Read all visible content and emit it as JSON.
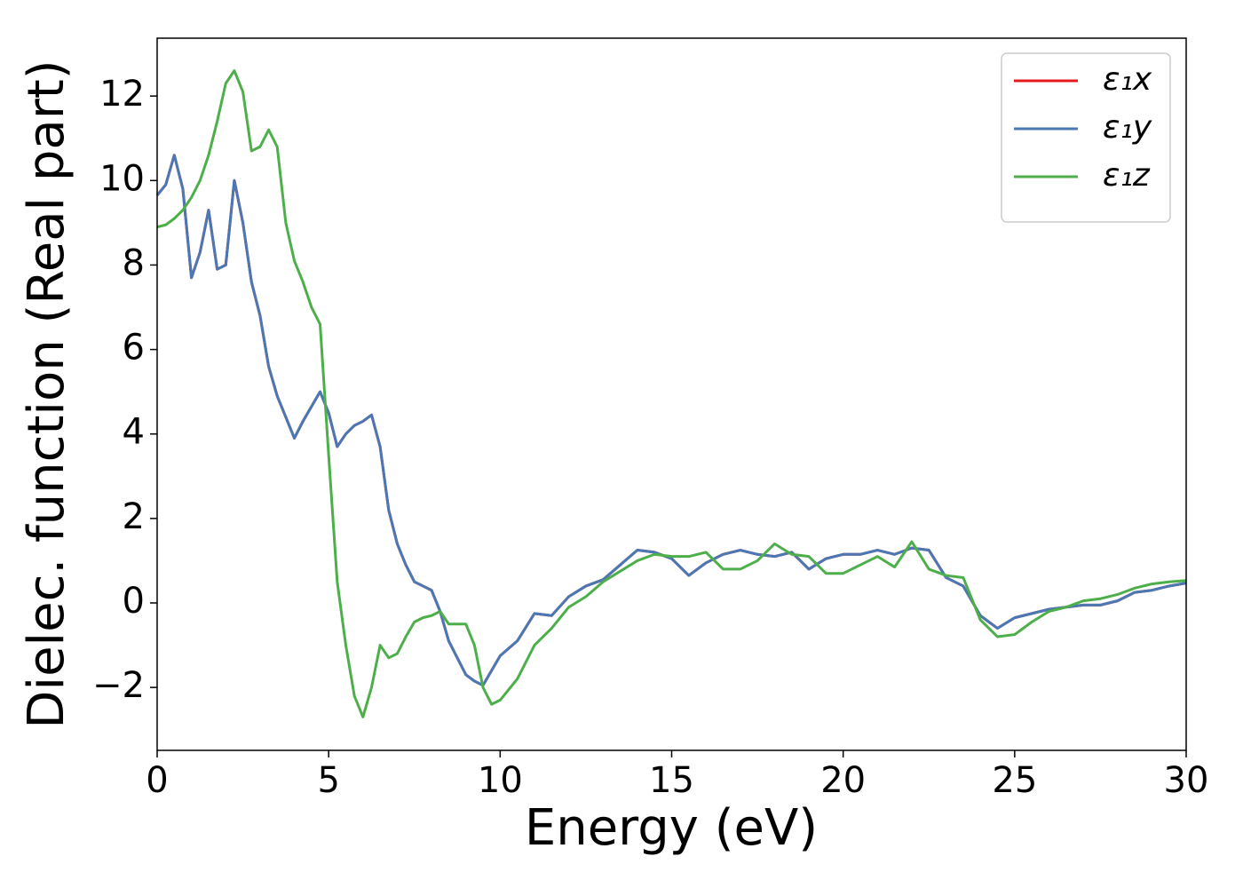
{
  "chart_data": {
    "type": "line",
    "xlabel": "Energy (eV)",
    "ylabel": "Dielec. function (Real part)",
    "x": [
      0,
      0.25,
      0.5,
      0.75,
      1,
      1.25,
      1.5,
      1.75,
      2,
      2.25,
      2.5,
      2.75,
      3,
      3.25,
      3.5,
      3.75,
      4,
      4.25,
      4.5,
      4.75,
      5,
      5.25,
      5.5,
      5.75,
      6,
      6.25,
      6.5,
      6.75,
      7,
      7.25,
      7.5,
      7.75,
      8,
      8.25,
      8.5,
      8.75,
      9,
      9.25,
      9.5,
      9.75,
      10,
      10.5,
      11,
      11.5,
      12,
      12.5,
      13,
      13.5,
      14,
      14.5,
      15,
      15.5,
      16,
      16.5,
      17,
      17.5,
      18,
      18.5,
      19,
      19.5,
      20,
      20.5,
      21,
      21.5,
      22,
      22.5,
      23,
      23.5,
      24,
      24.5,
      25,
      25.5,
      26,
      26.5,
      27,
      27.5,
      28,
      28.5,
      29,
      29.5,
      30
    ],
    "series": [
      {
        "name": "ε₁x",
        "color": "#e41a1c",
        "values": [
          9.65,
          9.9,
          10.6,
          9.8,
          7.7,
          8.3,
          9.3,
          7.9,
          8.0,
          10.0,
          9.0,
          7.6,
          6.8,
          5.6,
          4.9,
          4.4,
          3.9,
          4.3,
          4.65,
          5.0,
          4.5,
          3.7,
          4.0,
          4.2,
          4.3,
          4.45,
          3.7,
          2.2,
          1.4,
          0.9,
          0.5,
          0.4,
          0.3,
          -0.2,
          -0.9,
          -1.3,
          -1.7,
          -1.85,
          -1.95,
          -1.6,
          -1.25,
          -0.9,
          -0.25,
          -0.3,
          0.15,
          0.4,
          0.55,
          0.9,
          1.25,
          1.2,
          1.05,
          0.65,
          0.95,
          1.15,
          1.25,
          1.15,
          1.1,
          1.2,
          0.8,
          1.05,
          1.15,
          1.15,
          1.25,
          1.15,
          1.3,
          1.25,
          0.6,
          0.4,
          -0.3,
          -0.6,
          -0.35,
          -0.25,
          -0.15,
          -0.1,
          -0.05,
          -0.05,
          0.05,
          0.25,
          0.3,
          0.4,
          0.47
        ]
      },
      {
        "name": "ε₁y",
        "color": "#4a78b4",
        "values": [
          9.65,
          9.9,
          10.6,
          9.8,
          7.7,
          8.3,
          9.3,
          7.9,
          8.0,
          10.0,
          9.0,
          7.6,
          6.8,
          5.6,
          4.9,
          4.4,
          3.9,
          4.3,
          4.65,
          5.0,
          4.5,
          3.7,
          4.0,
          4.2,
          4.3,
          4.45,
          3.7,
          2.2,
          1.4,
          0.9,
          0.5,
          0.4,
          0.3,
          -0.2,
          -0.9,
          -1.3,
          -1.7,
          -1.85,
          -1.95,
          -1.6,
          -1.25,
          -0.9,
          -0.25,
          -0.3,
          0.15,
          0.4,
          0.55,
          0.9,
          1.25,
          1.2,
          1.05,
          0.65,
          0.95,
          1.15,
          1.25,
          1.15,
          1.1,
          1.2,
          0.8,
          1.05,
          1.15,
          1.15,
          1.25,
          1.15,
          1.3,
          1.25,
          0.6,
          0.4,
          -0.3,
          -0.6,
          -0.35,
          -0.25,
          -0.15,
          -0.1,
          -0.05,
          -0.05,
          0.05,
          0.25,
          0.3,
          0.4,
          0.47
        ]
      },
      {
        "name": "ε₁z",
        "color": "#4daf4a",
        "values": [
          8.9,
          8.95,
          9.1,
          9.3,
          9.6,
          10.0,
          10.6,
          11.4,
          12.3,
          12.6,
          12.1,
          10.7,
          10.8,
          11.2,
          10.8,
          9.0,
          8.1,
          7.6,
          7.0,
          6.6,
          3.5,
          0.5,
          -1.0,
          -2.2,
          -2.7,
          -2.0,
          -1.0,
          -1.3,
          -1.2,
          -0.8,
          -0.45,
          -0.35,
          -0.3,
          -0.2,
          -0.5,
          -0.5,
          -0.5,
          -1.0,
          -2.0,
          -2.4,
          -2.3,
          -1.8,
          -1.0,
          -0.6,
          -0.1,
          0.15,
          0.5,
          0.75,
          1.0,
          1.15,
          1.1,
          1.1,
          1.2,
          0.8,
          0.8,
          1.0,
          1.4,
          1.15,
          1.1,
          0.7,
          0.7,
          0.9,
          1.1,
          0.85,
          1.45,
          0.8,
          0.65,
          0.6,
          -0.4,
          -0.8,
          -0.75,
          -0.45,
          -0.2,
          -0.1,
          0.05,
          0.1,
          0.2,
          0.35,
          0.45,
          0.5,
          0.53
        ]
      }
    ],
    "xlim": [
      0,
      30
    ],
    "xticks": [
      0,
      5,
      10,
      15,
      20,
      25,
      30
    ],
    "ylim": [
      -3.49,
      13.37
    ],
    "yticks": [
      {
        "value": -2,
        "label": "−2"
      },
      0,
      2,
      4,
      6,
      8,
      10,
      12
    ],
    "legend": "upper right"
  }
}
